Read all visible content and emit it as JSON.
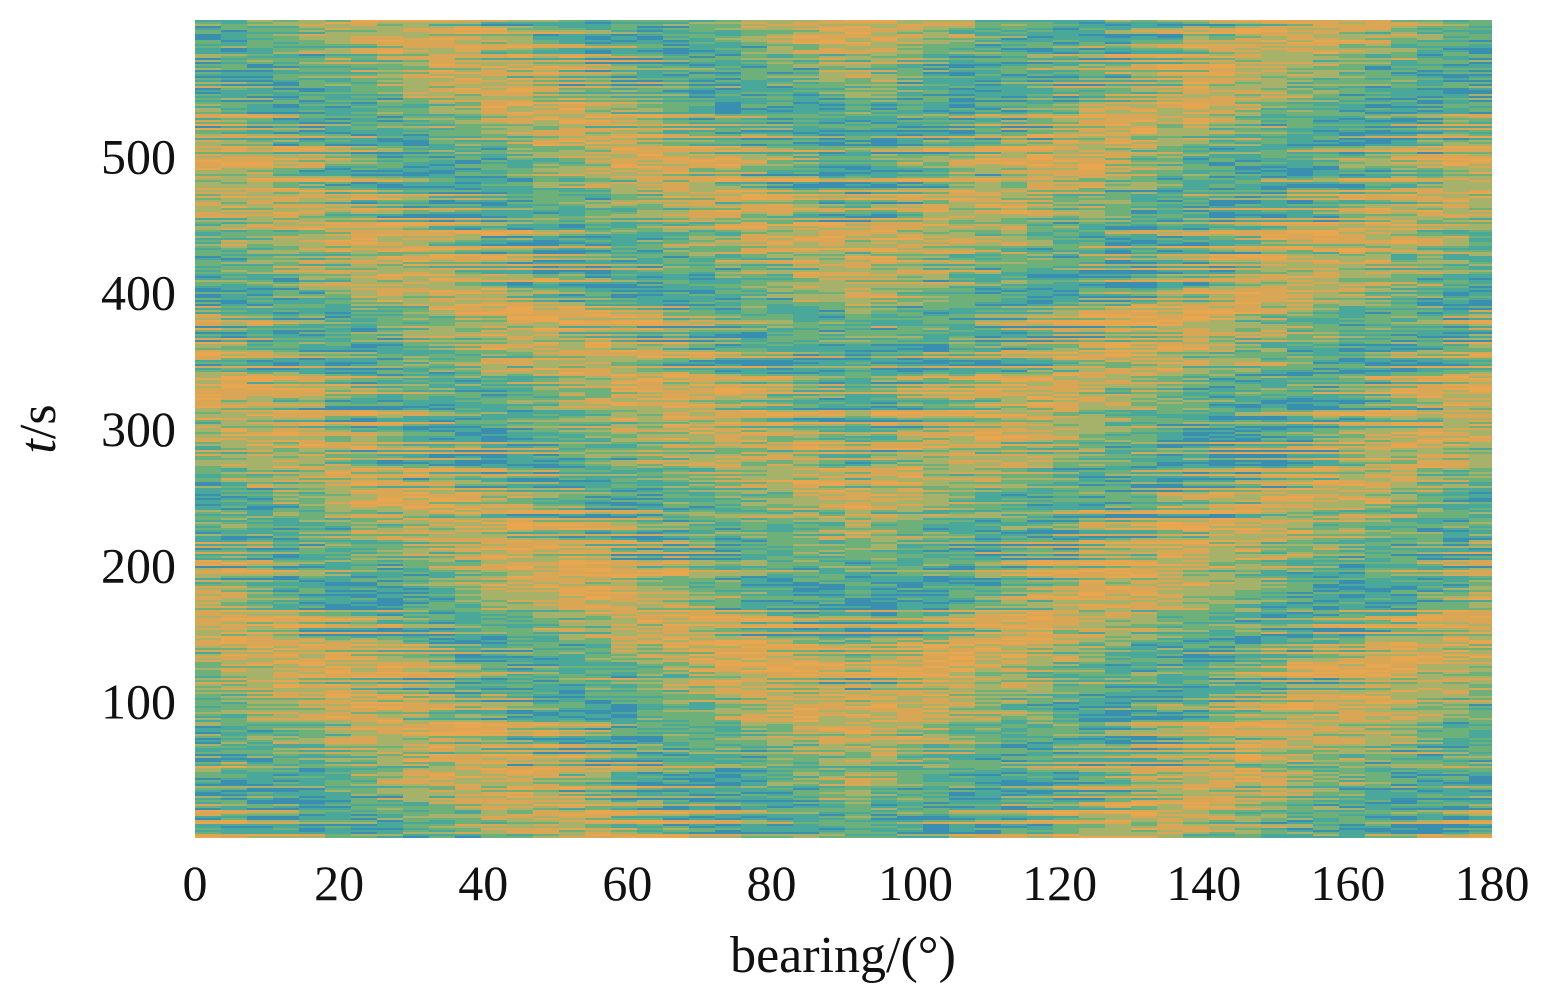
{
  "chart_data": {
    "type": "heatmap",
    "title": "",
    "xlabel": "bearing/(°)",
    "ylabel_italic": "t",
    "ylabel_rest": "/s",
    "xlim": [
      0,
      180
    ],
    "ylim": [
      0,
      600
    ],
    "xticks": [
      0,
      20,
      40,
      60,
      80,
      100,
      120,
      140,
      160,
      180
    ],
    "xtick_labels": [
      "0",
      "20",
      "40",
      "60",
      "80",
      "100",
      "120",
      "140",
      "160",
      "180"
    ],
    "yticks": [
      100,
      200,
      300,
      400,
      500
    ],
    "ytick_labels": [
      "100",
      "200",
      "300",
      "400",
      "500"
    ],
    "grid": false,
    "colormap": [
      "#3a8fb0",
      "#4aa89a",
      "#6db07a",
      "#a6b26a",
      "#d9a655",
      "#e8a64e"
    ],
    "description_of_values": "bearing-time record; broadband noise field with fringe-like arcs, no labeled values"
  }
}
